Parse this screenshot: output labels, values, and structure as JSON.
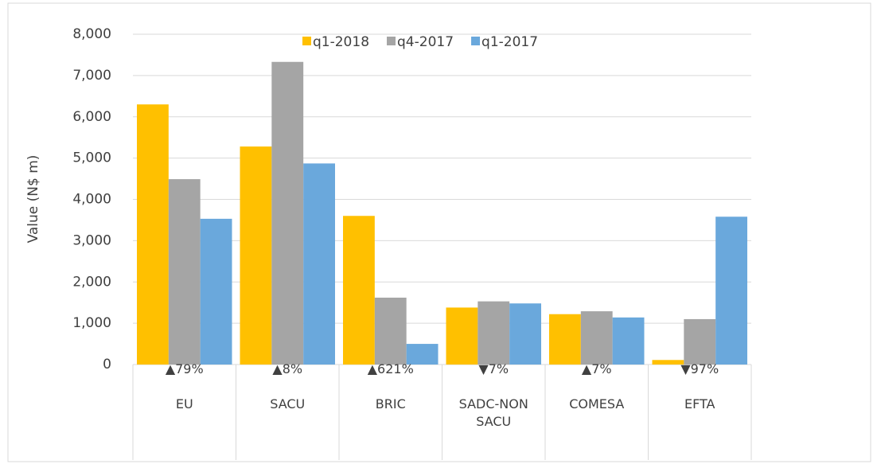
{
  "chart_data": {
    "type": "bar",
    "y_label": "Value (N$ m)",
    "categories": [
      "EU",
      "SACU",
      "BRIC",
      "SADC-NON SACU",
      "COMESA",
      "EFTA"
    ],
    "change_labels": [
      "▲79%",
      "▲8%",
      "▲621%",
      "▼7%",
      "▲7%",
      "▼97%"
    ],
    "series": [
      {
        "name": "q1-2018",
        "color": "#ffc000",
        "values": [
          6300,
          5280,
          3600,
          1380,
          1220,
          110
        ]
      },
      {
        "name": "q4-2017",
        "color": "#a5a5a5",
        "values": [
          4490,
          7330,
          1620,
          1530,
          1290,
          1100
        ]
      },
      {
        "name": "q1-2017",
        "color": "#6aa8dc",
        "values": [
          3530,
          4870,
          500,
          1480,
          1140,
          3580
        ]
      }
    ],
    "ylim": [
      0,
      8000
    ],
    "yticks": [
      0,
      {
        "value": 1000,
        "label": "1,000"
      },
      {
        "value": 2000,
        "label": "2,000"
      },
      {
        "value": 3000,
        "label": "3,000"
      },
      {
        "value": 4000,
        "label": "4,000"
      },
      {
        "value": 5000,
        "label": "5,000"
      },
      {
        "value": 6000,
        "label": "6,000"
      },
      {
        "value": 7000,
        "label": "7,000"
      },
      {
        "value": 8000,
        "label": "8,000"
      }
    ],
    "grid": true,
    "legend": "top"
  }
}
